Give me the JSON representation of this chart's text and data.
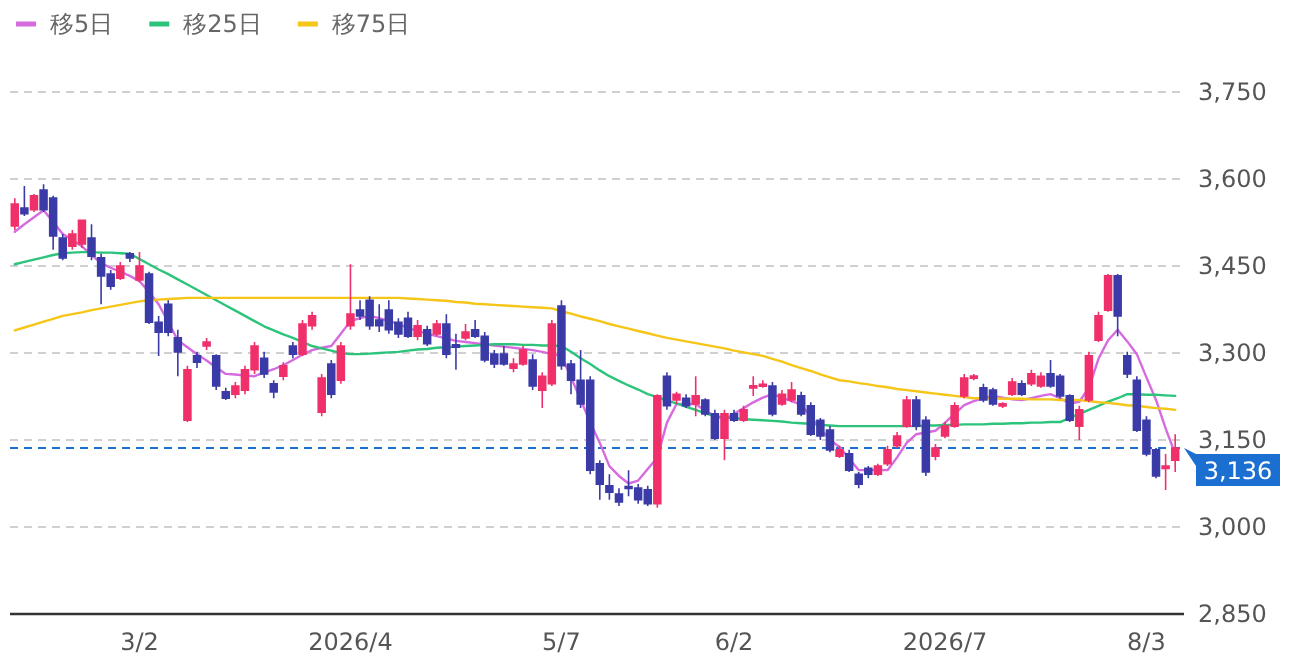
{
  "chart_data": {
    "type": "candlestick",
    "categories": [
      null,
      null,
      null,
      null,
      null,
      null,
      null,
      null,
      null,
      null,
      null,
      null,
      null,
      "3/2",
      null,
      null,
      null,
      null,
      null,
      null,
      null,
      null,
      null,
      null,
      null,
      null,
      null,
      null,
      null,
      null,
      null,
      null,
      null,
      null,
      null,
      "2026/4",
      null,
      null,
      null,
      null,
      null,
      null,
      null,
      null,
      null,
      null,
      null,
      null,
      null,
      null,
      null,
      null,
      null,
      null,
      null,
      null,
      null,
      "5/7",
      null,
      null,
      null,
      null,
      null,
      null,
      null,
      null,
      null,
      null,
      null,
      null,
      null,
      null,
      null,
      null,
      null,
      "6/2",
      null,
      null,
      null,
      null,
      null,
      null,
      null,
      null,
      null,
      null,
      null,
      null,
      null,
      null,
      null,
      null,
      null,
      null,
      null,
      null,
      null,
      "2026/7",
      null,
      null,
      null,
      null,
      null,
      null,
      null,
      null,
      null,
      null,
      null,
      null,
      null,
      null,
      null,
      null,
      null,
      null,
      null,
      null,
      "8/3",
      null,
      null,
      null
    ],
    "ohlc": [
      [
        3519,
        3567,
        3512,
        3557
      ],
      [
        3550,
        3588,
        3536,
        3540
      ],
      [
        3547,
        3574,
        3543,
        3571
      ],
      [
        3581,
        3591,
        3543,
        3547
      ],
      [
        3567,
        3571,
        3478,
        3502
      ],
      [
        3498,
        3505,
        3460,
        3464
      ],
      [
        3484,
        3512,
        3478,
        3505
      ],
      [
        3488,
        3529,
        3481,
        3529
      ],
      [
        3498,
        3522,
        3460,
        3467
      ],
      [
        3464,
        3471,
        3384,
        3433
      ],
      [
        3436,
        3443,
        3409,
        3415
      ],
      [
        3429,
        3457,
        3426,
        3450
      ],
      [
        3471,
        3474,
        3457,
        3464
      ],
      [
        3426,
        3474,
        3422,
        3450
      ],
      [
        3436,
        3440,
        3350,
        3353
      ],
      [
        3353,
        3364,
        3295,
        3336
      ],
      [
        3384,
        3391,
        3329,
        3336
      ],
      [
        3326,
        3340,
        3260,
        3302
      ],
      [
        3184,
        3278,
        3181,
        3271
      ],
      [
        3295,
        3302,
        3274,
        3284
      ],
      [
        3312,
        3326,
        3305,
        3319
      ],
      [
        3295,
        3298,
        3236,
        3243
      ],
      [
        3233,
        3240,
        3219,
        3222
      ],
      [
        3229,
        3250,
        3222,
        3243
      ],
      [
        3236,
        3278,
        3229,
        3271
      ],
      [
        3271,
        3319,
        3264,
        3312
      ],
      [
        3291,
        3302,
        3257,
        3264
      ],
      [
        3247,
        3253,
        3222,
        3233
      ],
      [
        3260,
        3284,
        3253,
        3278
      ],
      [
        3312,
        3319,
        3291,
        3298
      ],
      [
        3298,
        3357,
        3295,
        3350
      ],
      [
        3347,
        3371,
        3340,
        3364
      ],
      [
        3198,
        3264,
        3191,
        3257
      ],
      [
        3281,
        3288,
        3222,
        3229
      ],
      [
        3253,
        3319,
        3247,
        3312
      ],
      [
        3347,
        3453,
        3340,
        3367
      ],
      [
        3374,
        3391,
        3357,
        3364
      ],
      [
        3391,
        3398,
        3340,
        3347
      ],
      [
        3357,
        3384,
        3336,
        3347
      ],
      [
        3374,
        3391,
        3333,
        3340
      ],
      [
        3353,
        3360,
        3326,
        3333
      ],
      [
        3360,
        3371,
        3326,
        3329
      ],
      [
        3329,
        3357,
        3322,
        3347
      ],
      [
        3340,
        3347,
        3312,
        3316
      ],
      [
        3333,
        3357,
        3329,
        3350
      ],
      [
        3350,
        3367,
        3291,
        3298
      ],
      [
        3314,
        3333,
        3271,
        3310
      ],
      [
        3326,
        3350,
        3322,
        3336
      ],
      [
        3340,
        3357,
        3326,
        3329
      ],
      [
        3329,
        3336,
        3284,
        3288
      ],
      [
        3298,
        3305,
        3274,
        3281
      ],
      [
        3298,
        3312,
        3278,
        3281
      ],
      [
        3274,
        3291,
        3267,
        3281
      ],
      [
        3281,
        3312,
        3278,
        3305
      ],
      [
        3288,
        3298,
        3236,
        3243
      ],
      [
        3236,
        3267,
        3205,
        3260
      ],
      [
        3247,
        3357,
        3243,
        3350
      ],
      [
        3381,
        3391,
        3271,
        3278
      ],
      [
        3281,
        3288,
        3229,
        3253
      ],
      [
        3253,
        3305,
        3205,
        3212
      ],
      [
        3253,
        3260,
        3091,
        3098
      ],
      [
        3109,
        3115,
        3047,
        3074
      ],
      [
        3071,
        3091,
        3047,
        3060
      ],
      [
        3057,
        3067,
        3036,
        3043
      ],
      [
        3069,
        3098,
        3053,
        3067
      ],
      [
        3067,
        3074,
        3040,
        3047
      ],
      [
        3064,
        3071,
        3036,
        3040
      ],
      [
        3040,
        3229,
        3033,
        3226
      ],
      [
        3260,
        3267,
        3202,
        3209
      ],
      [
        3219,
        3233,
        3212,
        3229
      ],
      [
        3222,
        3229,
        3205,
        3209
      ],
      [
        3212,
        3260,
        3191,
        3226
      ],
      [
        3219,
        3222,
        3191,
        3195
      ],
      [
        3195,
        3202,
        3150,
        3153
      ],
      [
        3153,
        3202,
        3115,
        3195
      ],
      [
        3195,
        3202,
        3181,
        3184
      ],
      [
        3184,
        3209,
        3181,
        3202
      ],
      [
        3240,
        3260,
        3226,
        3243
      ],
      [
        3243,
        3253,
        3240,
        3246
      ],
      [
        3243,
        3250,
        3191,
        3195
      ],
      [
        3212,
        3236,
        3209,
        3229
      ],
      [
        3219,
        3250,
        3215,
        3236
      ],
      [
        3226,
        3233,
        3191,
        3195
      ],
      [
        3209,
        3215,
        3157,
        3160
      ],
      [
        3184,
        3188,
        3150,
        3157
      ],
      [
        3167,
        3174,
        3129,
        3133
      ],
      [
        3122,
        3140,
        3119,
        3133
      ],
      [
        3126,
        3133,
        3095,
        3098
      ],
      [
        3091,
        3095,
        3067,
        3074
      ],
      [
        3101,
        3105,
        3084,
        3091
      ],
      [
        3091,
        3109,
        3088,
        3105
      ],
      [
        3109,
        3140,
        3105,
        3133
      ],
      [
        3140,
        3164,
        3136,
        3157
      ],
      [
        3174,
        3226,
        3171,
        3219
      ],
      [
        3219,
        3226,
        3167,
        3174
      ],
      [
        3184,
        3191,
        3088,
        3095
      ],
      [
        3122,
        3143,
        3115,
        3136
      ],
      [
        3157,
        3181,
        3153,
        3174
      ],
      [
        3174,
        3215,
        3171,
        3209
      ],
      [
        3226,
        3264,
        3222,
        3257
      ],
      [
        3257,
        3264,
        3253,
        3260
      ],
      [
        3240,
        3247,
        3215,
        3219
      ],
      [
        3236,
        3240,
        3209,
        3212
      ],
      [
        3209,
        3215,
        3205,
        3212
      ],
      [
        3229,
        3257,
        3226,
        3250
      ],
      [
        3247,
        3253,
        3226,
        3229
      ],
      [
        3247,
        3271,
        3243,
        3264
      ],
      [
        3243,
        3267,
        3240,
        3260
      ],
      [
        3264,
        3288,
        3240,
        3243
      ],
      [
        3260,
        3264,
        3222,
        3226
      ],
      [
        3226,
        3229,
        3181,
        3184
      ],
      [
        3174,
        3209,
        3150,
        3202
      ],
      [
        3219,
        3302,
        3215,
        3295
      ],
      [
        3322,
        3371,
        3319,
        3364
      ],
      [
        3374,
        3436,
        3371,
        3433
      ],
      [
        3433,
        3436,
        3329,
        3364
      ],
      [
        3295,
        3302,
        3257,
        3264
      ],
      [
        3253,
        3260,
        3164,
        3167
      ],
      [
        3184,
        3191,
        3122,
        3126
      ],
      [
        3133,
        3136,
        3084,
        3088
      ],
      [
        3101,
        3126,
        3064,
        3105
      ],
      [
        3115,
        3160,
        3095,
        3136
      ]
    ],
    "colors": [
      "#f0306a",
      "#3b3ba8",
      "#f0306a",
      "#3b3ba8",
      "#3b3ba8",
      "#3b3ba8",
      "#f0306a",
      "#f0306a",
      "#3b3ba8",
      "#3b3ba8",
      "#3b3ba8",
      "#f0306a",
      "#3b3ba8",
      "#f0306a",
      "#3b3ba8",
      "#3b3ba8",
      "#3b3ba8",
      "#3b3ba8",
      "#f0306a",
      "#3b3ba8",
      "#f0306a",
      "#3b3ba8",
      "#3b3ba8",
      "#f0306a",
      "#f0306a",
      "#f0306a",
      "#3b3ba8",
      "#3b3ba8",
      "#f0306a",
      "#3b3ba8",
      "#f0306a",
      "#f0306a",
      "#f0306a",
      "#3b3ba8",
      "#f0306a",
      "#f0306a",
      "#3b3ba8",
      "#3b3ba8",
      "#3b3ba8",
      "#3b3ba8",
      "#3b3ba8",
      "#3b3ba8",
      "#f0306a",
      "#3b3ba8",
      "#f0306a",
      "#3b3ba8",
      "#3b3ba8",
      "#f0306a",
      "#3b3ba8",
      "#3b3ba8",
      "#3b3ba8",
      "#3b3ba8",
      "#f0306a",
      "#f0306a",
      "#3b3ba8",
      "#f0306a",
      "#f0306a",
      "#3b3ba8",
      "#3b3ba8",
      "#3b3ba8",
      "#3b3ba8",
      "#3b3ba8",
      "#3b3ba8",
      "#3b3ba8",
      "#3b3ba8",
      "#3b3ba8",
      "#3b3ba8",
      "#f0306a",
      "#3b3ba8",
      "#f0306a",
      "#3b3ba8",
      "#f0306a",
      "#3b3ba8",
      "#3b3ba8",
      "#f0306a",
      "#3b3ba8",
      "#f0306a",
      "#f0306a",
      "#f0306a",
      "#3b3ba8",
      "#f0306a",
      "#f0306a",
      "#3b3ba8",
      "#3b3ba8",
      "#3b3ba8",
      "#3b3ba8",
      "#f0306a",
      "#3b3ba8",
      "#3b3ba8",
      "#3b3ba8",
      "#f0306a",
      "#f0306a",
      "#f0306a",
      "#f0306a",
      "#3b3ba8",
      "#3b3ba8",
      "#f0306a",
      "#f0306a",
      "#f0306a",
      "#f0306a",
      "#f0306a",
      "#3b3ba8",
      "#3b3ba8",
      "#f0306a",
      "#f0306a",
      "#3b3ba8",
      "#f0306a",
      "#f0306a",
      "#3b3ba8",
      "#3b3ba8",
      "#3b3ba8",
      "#f0306a",
      "#f0306a",
      "#f0306a",
      "#f0306a",
      "#3b3ba8",
      "#3b3ba8",
      "#3b3ba8",
      "#3b3ba8",
      "#3b3ba8",
      "#f0306a",
      "#f0306a"
    ],
    "series": [
      {
        "name": "移5日",
        "type": "line",
        "color": "#d66be0",
        "values": [
          3509,
          3522,
          3534,
          3546,
          3526,
          3505,
          3495,
          3484,
          3469,
          3455,
          3447,
          3440,
          3433,
          3424,
          3405,
          3384,
          3353,
          3322,
          3310,
          3298,
          3287,
          3275,
          3264,
          3263,
          3261,
          3260,
          3266,
          3272,
          3279,
          3288,
          3297,
          3305,
          3309,
          3312,
          3333,
          3355,
          3360,
          3364,
          3360,
          3355,
          3350,
          3343,
          3338,
          3333,
          3329,
          3325,
          3321,
          3319,
          3317,
          3315,
          3313,
          3311,
          3309,
          3307,
          3305,
          3302,
          3298,
          3295,
          3258,
          3220,
          3180,
          3145,
          3105,
          3088,
          3075,
          3080,
          3100,
          3120,
          3180,
          3212,
          3212,
          3212,
          3200,
          3192,
          3185,
          3195,
          3205,
          3215,
          3223,
          3229,
          3223,
          3217,
          3211,
          3190,
          3170,
          3150,
          3138,
          3118,
          3098,
          3098,
          3098,
          3098,
          3120,
          3145,
          3160,
          3163,
          3166,
          3180,
          3195,
          3210,
          3217,
          3222,
          3226,
          3223,
          3220,
          3219,
          3222,
          3226,
          3229,
          3222,
          3213,
          3216,
          3240,
          3290,
          3322,
          3340,
          3320,
          3298,
          3258,
          3219,
          3170,
          3126
        ]
      },
      {
        "name": "移25日",
        "type": "line",
        "color": "#2cc47a",
        "values": [
          3453,
          3457,
          3461,
          3465,
          3469,
          3472,
          3473,
          3474,
          3474,
          3473,
          3473,
          3472,
          3471,
          3462,
          3453,
          3444,
          3436,
          3427,
          3418,
          3409,
          3400,
          3391,
          3382,
          3373,
          3364,
          3355,
          3346,
          3339,
          3332,
          3326,
          3319,
          3312,
          3308,
          3304,
          3300,
          3298,
          3298,
          3299,
          3300,
          3301,
          3302,
          3304,
          3306,
          3307,
          3309,
          3310,
          3311,
          3312,
          3313,
          3314,
          3315,
          3315,
          3315,
          3314,
          3314,
          3313,
          3313,
          3312,
          3302,
          3291,
          3281,
          3270,
          3260,
          3252,
          3244,
          3237,
          3229,
          3224,
          3218,
          3213,
          3207,
          3202,
          3196,
          3191,
          3189,
          3188,
          3186,
          3185,
          3184,
          3183,
          3182,
          3180,
          3179,
          3178,
          3176,
          3175,
          3174,
          3174,
          3174,
          3174,
          3174,
          3174,
          3174,
          3174,
          3174,
          3175,
          3175,
          3176,
          3176,
          3177,
          3177,
          3177,
          3178,
          3178,
          3179,
          3179,
          3180,
          3180,
          3181,
          3181,
          3188,
          3195,
          3202,
          3209,
          3216,
          3222,
          3229,
          3229,
          3228,
          3228,
          3227,
          3226
        ]
      },
      {
        "name": "移75日",
        "type": "line",
        "color": "#f5c518",
        "values": [
          3339,
          3344,
          3349,
          3354,
          3359,
          3364,
          3367,
          3370,
          3374,
          3377,
          3380,
          3383,
          3386,
          3389,
          3391,
          3392,
          3393,
          3394,
          3395,
          3395,
          3395,
          3395,
          3395,
          3395,
          3395,
          3395,
          3395,
          3395,
          3395,
          3395,
          3395,
          3395,
          3395,
          3395,
          3395,
          3395,
          3395,
          3395,
          3395,
          3395,
          3395,
          3394,
          3393,
          3392,
          3391,
          3390,
          3388,
          3387,
          3385,
          3384,
          3383,
          3382,
          3381,
          3380,
          3379,
          3378,
          3377,
          3372,
          3368,
          3363,
          3359,
          3355,
          3350,
          3346,
          3342,
          3338,
          3334,
          3330,
          3326,
          3323,
          3320,
          3317,
          3314,
          3311,
          3308,
          3304,
          3301,
          3298,
          3295,
          3290,
          3285,
          3279,
          3274,
          3269,
          3263,
          3258,
          3253,
          3251,
          3248,
          3246,
          3243,
          3241,
          3238,
          3236,
          3234,
          3232,
          3230,
          3228,
          3226,
          3224,
          3222,
          3222,
          3222,
          3221,
          3221,
          3221,
          3220,
          3220,
          3220,
          3219,
          3219,
          3219,
          3217,
          3215,
          3214,
          3212,
          3210,
          3209,
          3207,
          3205,
          3204,
          3202
        ]
      }
    ],
    "ylim": [
      2850,
      3750
    ],
    "yticks": [
      {
        "value": 2850,
        "label": "2,850"
      },
      {
        "value": 3000,
        "label": "3,000"
      },
      {
        "value": 3150,
        "label": "3,150"
      },
      {
        "value": 3300,
        "label": "3,300"
      },
      {
        "value": 3450,
        "label": "3,450"
      },
      {
        "value": 3600,
        "label": "3,600"
      },
      {
        "value": 3750,
        "label": "3,750"
      }
    ],
    "ref_lines": [
      {
        "axis": "y",
        "value": 3136,
        "label": "3,136",
        "color": "#1a6fd0",
        "line_style": "dashed"
      }
    ],
    "grid": "y",
    "legend": "top left"
  }
}
